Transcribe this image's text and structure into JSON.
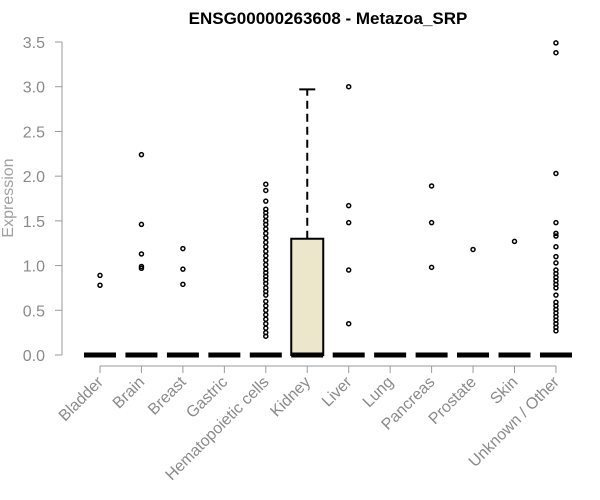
{
  "chart_data": {
    "type": "boxplot",
    "title": "ENSG00000263608 - Metazoa_SRP",
    "xlabel": "",
    "ylabel": "Expression",
    "ylim": [
      0,
      3.5
    ],
    "yticks": [
      0.0,
      0.5,
      1.0,
      1.5,
      2.0,
      2.5,
      3.0,
      3.5
    ],
    "ytick_labels": [
      "0.0",
      "0.5",
      "1.0",
      "1.5",
      "2.0",
      "2.5",
      "3.0",
      "3.5"
    ],
    "categories": [
      "Bladder",
      "Brain",
      "Breast",
      "Gastric",
      "Hematopoietic cells",
      "Kidney",
      "Liver",
      "Lung",
      "Pancreas",
      "Prostate",
      "Skin",
      "Unknown / Other"
    ],
    "boxes": [
      {
        "q1": 0,
        "median": 0,
        "q3": 0,
        "whisker_low": 0,
        "whisker_high": 0
      },
      {
        "q1": 0,
        "median": 0,
        "q3": 0,
        "whisker_low": 0,
        "whisker_high": 0
      },
      {
        "q1": 0,
        "median": 0,
        "q3": 0,
        "whisker_low": 0,
        "whisker_high": 0
      },
      {
        "q1": 0,
        "median": 0,
        "q3": 0,
        "whisker_low": 0,
        "whisker_high": 0
      },
      {
        "q1": 0,
        "median": 0,
        "q3": 0,
        "whisker_low": 0,
        "whisker_high": 0
      },
      {
        "q1": 0,
        "median": 0,
        "q3": 1.3,
        "whisker_low": 0,
        "whisker_high": 2.97
      },
      {
        "q1": 0,
        "median": 0,
        "q3": 0,
        "whisker_low": 0,
        "whisker_high": 0
      },
      {
        "q1": 0,
        "median": 0,
        "q3": 0,
        "whisker_low": 0,
        "whisker_high": 0
      },
      {
        "q1": 0,
        "median": 0,
        "q3": 0,
        "whisker_low": 0,
        "whisker_high": 0
      },
      {
        "q1": 0,
        "median": 0,
        "q3": 0,
        "whisker_low": 0,
        "whisker_high": 0
      },
      {
        "q1": 0,
        "median": 0,
        "q3": 0,
        "whisker_low": 0,
        "whisker_high": 0
      },
      {
        "q1": 0,
        "median": 0,
        "q3": 0,
        "whisker_low": 0,
        "whisker_high": 0
      }
    ],
    "outliers": [
      [
        0.89,
        0.78
      ],
      [
        2.24,
        1.46,
        1.13,
        0.99,
        0.97
      ],
      [
        1.19,
        0.96,
        0.79
      ],
      [],
      [
        1.91,
        1.84,
        1.72,
        1.63,
        1.59,
        1.55,
        1.5,
        1.46,
        1.41,
        1.36,
        1.31,
        1.26,
        1.21,
        1.16,
        1.11,
        1.06,
        1.01,
        0.96,
        0.92,
        0.88,
        0.84,
        0.8,
        0.75,
        0.71,
        0.67,
        0.6,
        0.55,
        0.5,
        0.45,
        0.4,
        0.35,
        0.3,
        0.25,
        0.21
      ],
      [],
      [
        3.0,
        1.67,
        1.48,
        0.95,
        0.35
      ],
      [],
      [
        1.89,
        1.48,
        0.98
      ],
      [
        1.18
      ],
      [
        1.27
      ],
      [
        3.49,
        3.38,
        2.03,
        1.48,
        1.36,
        1.33,
        1.21,
        1.1,
        1.03,
        0.95,
        0.91,
        0.87,
        0.83,
        0.79,
        0.75,
        0.67,
        0.59,
        0.55,
        0.51,
        0.47,
        0.43,
        0.39,
        0.35,
        0.31,
        0.27
      ]
    ],
    "colors": {
      "box_fill": "#ece6cb",
      "box_stroke": "#000000",
      "axis": "#9a9a9a",
      "tick_text": "#8a8a8a",
      "title": "#000000"
    },
    "grid": false,
    "legend": "none"
  }
}
